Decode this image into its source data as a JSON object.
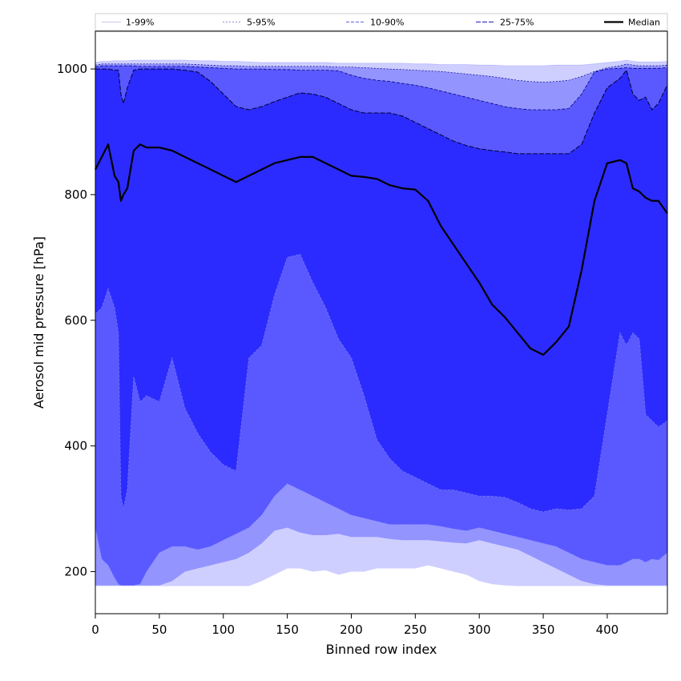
{
  "chart_data": {
    "type": "area",
    "xlabel": "Binned row index",
    "ylabel": "Aerosol mid pressure [hPa]",
    "xlim": [
      0,
      447
    ],
    "ylim": [
      133,
      1060
    ],
    "xticks": [
      0,
      50,
      100,
      150,
      200,
      250,
      300,
      350,
      400
    ],
    "yticks": [
      200,
      400,
      600,
      800,
      1000
    ],
    "grid": false,
    "legend": "top, horizontal above plot",
    "legend_entries": [
      "1-99%",
      "5-95%",
      "10-90%",
      "25-75%",
      "Median"
    ],
    "colors": {
      "band_1_99": "#cfcfff",
      "band_5_95": "#9494ff",
      "band_10_90": "#5959ff",
      "band_25_75": "#2b2bff",
      "median": "#000000",
      "edge_1_99": "#b8b8ff",
      "edge_5_95": "#8a8aff",
      "edge_10_90": "#7777ee",
      "edge_25_75": "#000080"
    },
    "x": [
      0,
      5,
      10,
      15,
      18,
      20,
      22,
      25,
      30,
      35,
      40,
      50,
      60,
      70,
      80,
      90,
      100,
      110,
      120,
      130,
      140,
      150,
      160,
      170,
      180,
      190,
      200,
      210,
      220,
      230,
      240,
      250,
      260,
      270,
      280,
      290,
      300,
      310,
      320,
      330,
      340,
      350,
      360,
      370,
      380,
      390,
      400,
      410,
      415,
      420,
      425,
      430,
      435,
      440,
      447
    ],
    "series": [
      {
        "name": "1-99% upper",
        "values": [
          1010,
          1012,
          1012,
          1013,
          1013,
          1013,
          1013,
          1013,
          1014,
          1014,
          1014,
          1014,
          1014,
          1014,
          1013,
          1013,
          1012,
          1012,
          1011,
          1010,
          1010,
          1010,
          1010,
          1010,
          1010,
          1009,
          1009,
          1009,
          1009,
          1009,
          1009,
          1008,
          1008,
          1007,
          1007,
          1007,
          1006,
          1006,
          1005,
          1005,
          1005,
          1005,
          1006,
          1006,
          1006,
          1008,
          1010,
          1012,
          1014,
          1012,
          1011,
          1011,
          1011,
          1011,
          1012
        ]
      },
      {
        "name": "5-95% upper",
        "values": [
          1006,
          1008,
          1008,
          1008,
          1008,
          1008,
          1008,
          1008,
          1008,
          1008,
          1008,
          1008,
          1008,
          1008,
          1007,
          1006,
          1005,
          1005,
          1004,
          1004,
          1004,
          1004,
          1004,
          1004,
          1004,
          1003,
          1003,
          1002,
          1001,
          1000,
          999,
          998,
          997,
          996,
          994,
          992,
          990,
          988,
          985,
          982,
          980,
          979,
          980,
          982,
          988,
          996,
          1002,
          1005,
          1008,
          1006,
          1005,
          1005,
          1005,
          1005,
          1006
        ]
      },
      {
        "name": "10-90% upper",
        "values": [
          1003,
          1005,
          1005,
          1005,
          1005,
          1005,
          1005,
          1005,
          1005,
          1004,
          1004,
          1004,
          1004,
          1004,
          1003,
          1002,
          1001,
          1000,
          1000,
          1000,
          999,
          999,
          998,
          998,
          998,
          997,
          990,
          985,
          982,
          980,
          977,
          974,
          970,
          965,
          960,
          955,
          950,
          945,
          940,
          937,
          935,
          935,
          935,
          937,
          960,
          995,
          1000,
          1001,
          1002,
          1001,
          1001,
          1001,
          1001,
          1001,
          1002
        ]
      },
      {
        "name": "25-75% upper",
        "values": [
          1000,
          1000,
          1000,
          998,
          998,
          960,
          945,
          970,
          998,
          1000,
          1000,
          1000,
          1000,
          998,
          995,
          980,
          960,
          940,
          935,
          940,
          948,
          955,
          962,
          960,
          955,
          945,
          935,
          930,
          930,
          930,
          925,
          915,
          905,
          895,
          885,
          878,
          873,
          870,
          868,
          865,
          865,
          865,
          865,
          865,
          880,
          930,
          970,
          985,
          998,
          960,
          950,
          955,
          935,
          945,
          975
        ]
      },
      {
        "name": "Median",
        "values": [
          840,
          860,
          880,
          830,
          820,
          790,
          800,
          810,
          870,
          880,
          875,
          875,
          870,
          860,
          850,
          840,
          830,
          820,
          830,
          840,
          850,
          855,
          860,
          860,
          850,
          840,
          830,
          828,
          825,
          815,
          810,
          808,
          790,
          750,
          720,
          690,
          660,
          625,
          605,
          580,
          555,
          545,
          565,
          590,
          680,
          790,
          850,
          855,
          850,
          810,
          805,
          795,
          790,
          790,
          770
        ]
      },
      {
        "name": "25-75% lower",
        "values": [
          610,
          620,
          650,
          620,
          580,
          320,
          300,
          330,
          510,
          470,
          480,
          470,
          540,
          460,
          420,
          390,
          370,
          360,
          540,
          560,
          640,
          700,
          705,
          660,
          620,
          570,
          540,
          480,
          410,
          380,
          360,
          350,
          340,
          330,
          330,
          325,
          320,
          320,
          318,
          310,
          300,
          295,
          300,
          298,
          300,
          320,
          450,
          580,
          560,
          580,
          570,
          450,
          440,
          430,
          440
        ]
      },
      {
        "name": "10-90% lower",
        "values": [
          270,
          220,
          210,
          190,
          180,
          178,
          178,
          178,
          178,
          180,
          200,
          230,
          240,
          240,
          235,
          240,
          250,
          260,
          270,
          290,
          320,
          340,
          330,
          320,
          310,
          300,
          290,
          285,
          280,
          275,
          275,
          275,
          275,
          272,
          268,
          265,
          270,
          265,
          260,
          255,
          250,
          245,
          240,
          230,
          220,
          215,
          210,
          210,
          215,
          220,
          220,
          215,
          220,
          218,
          230
        ]
      },
      {
        "name": "5-95% lower",
        "values": [
          178,
          178,
          178,
          178,
          178,
          178,
          178,
          178,
          178,
          178,
          178,
          178,
          185,
          200,
          205,
          210,
          215,
          220,
          230,
          245,
          265,
          270,
          262,
          258,
          258,
          260,
          255,
          255,
          255,
          252,
          250,
          250,
          250,
          248,
          246,
          245,
          250,
          245,
          240,
          235,
          225,
          215,
          205,
          195,
          185,
          180,
          178,
          178,
          178,
          178,
          178,
          178,
          178,
          178,
          178
        ]
      },
      {
        "name": "1-99% lower",
        "values": [
          177,
          177,
          177,
          177,
          177,
          177,
          177,
          177,
          177,
          177,
          177,
          177,
          177,
          177,
          177,
          177,
          177,
          177,
          177,
          185,
          195,
          205,
          205,
          200,
          202,
          195,
          200,
          200,
          205,
          205,
          205,
          205,
          210,
          205,
          200,
          195,
          185,
          180,
          178,
          177,
          177,
          177,
          177,
          177,
          177,
          177,
          177,
          177,
          177,
          177,
          177,
          177,
          177,
          177,
          177
        ]
      }
    ]
  }
}
